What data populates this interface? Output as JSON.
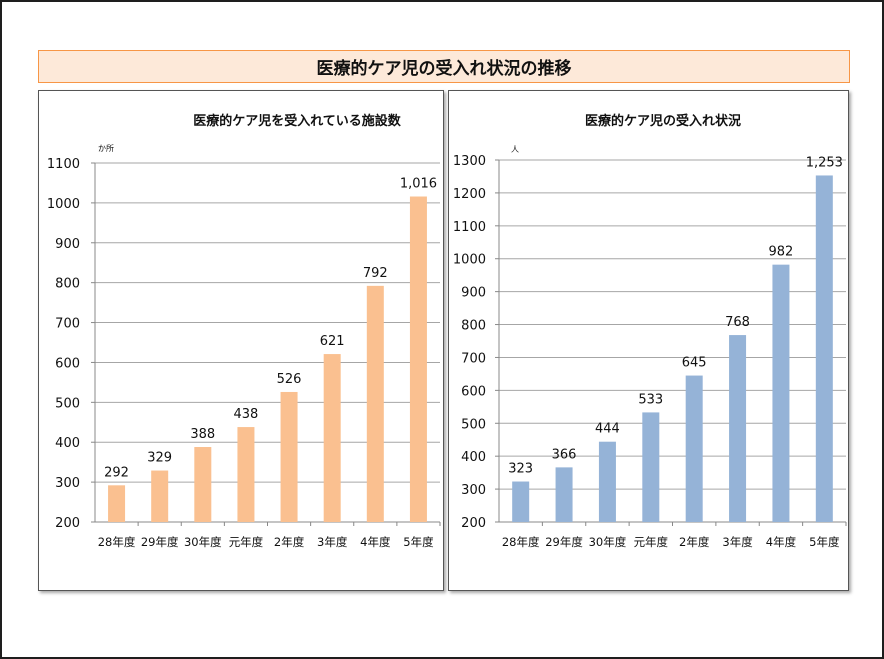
{
  "page_title": "医療的ケア児の受入れ状況の推移",
  "chart_data": [
    {
      "type": "bar",
      "title": "医療的ケア児を受入れている施設数",
      "unit_label": "か所",
      "xlabel": "",
      "ylabel": "か所",
      "categories": [
        "28年度",
        "29年度",
        "30年度",
        "元年度",
        "2年度",
        "3年度",
        "4年度",
        "5年度"
      ],
      "values": [
        292,
        329,
        388,
        438,
        526,
        621,
        792,
        1016
      ],
      "data_labels": [
        "292",
        "329",
        "388",
        "438",
        "526",
        "621",
        "792",
        "1,016"
      ],
      "ylim": [
        200,
        1100
      ],
      "yticks": [
        200,
        300,
        400,
        500,
        600,
        700,
        800,
        900,
        1000,
        1100
      ],
      "grid": true,
      "legend": "none",
      "color": "#fac090"
    },
    {
      "type": "bar",
      "title": "医療的ケア児の受入れ状況",
      "unit_label": "人",
      "xlabel": "",
      "ylabel": "人",
      "categories": [
        "28年度",
        "29年度",
        "30年度",
        "元年度",
        "2年度",
        "3年度",
        "4年度",
        "5年度"
      ],
      "values": [
        323,
        366,
        444,
        533,
        645,
        768,
        982,
        1253
      ],
      "data_labels": [
        "323",
        "366",
        "444",
        "533",
        "645",
        "768",
        "982",
        "1,253"
      ],
      "ylim": [
        200,
        1300
      ],
      "yticks": [
        200,
        300,
        400,
        500,
        600,
        700,
        800,
        900,
        1000,
        1100,
        1200,
        1300
      ],
      "grid": true,
      "legend": "none",
      "color": "#95b3d7"
    }
  ]
}
